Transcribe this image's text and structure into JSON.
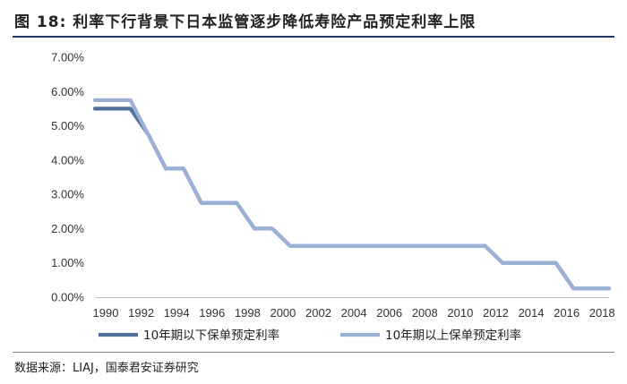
{
  "figure": {
    "title": "图 18: 利率下行背景下日本监管逐步降低寿险产品预定利率上限",
    "source": "数据来源：LIAJ，国泰君安证券研究"
  },
  "colors": {
    "series_1": "#4f6f9c",
    "series_2": "#9bb0d4",
    "axis": "#bfbfbf",
    "rule": "#1f3a68"
  },
  "chart_data": {
    "type": "line",
    "title": "",
    "xlabel": "",
    "ylabel": "",
    "xlim": [
      1990,
      2019
    ],
    "ylim": [
      0,
      7
    ],
    "y_ticks": [
      "0.00%",
      "1.00%",
      "2.00%",
      "3.00%",
      "4.00%",
      "5.00%",
      "6.00%",
      "7.00%"
    ],
    "x_ticks": [
      "1990",
      "1992",
      "1994",
      "1996",
      "1998",
      "2000",
      "2002",
      "2004",
      "2006",
      "2008",
      "2010",
      "2012",
      "2014",
      "2016",
      "2018"
    ],
    "grid": false,
    "legend_position": "bottom",
    "series": [
      {
        "name": "10年期以下保单预定利率",
        "color": "#4f6f9c",
        "points": [
          [
            1990,
            5.5
          ],
          [
            1992,
            5.5
          ],
          [
            1993,
            4.75
          ],
          [
            1994,
            3.75
          ],
          [
            1995,
            3.75
          ],
          [
            1996,
            2.75
          ],
          [
            1998,
            2.75
          ],
          [
            1999,
            2.0
          ],
          [
            2000,
            2.0
          ],
          [
            2001,
            1.5
          ],
          [
            2012,
            1.5
          ],
          [
            2013,
            1.0
          ],
          [
            2016,
            1.0
          ],
          [
            2017,
            0.25
          ],
          [
            2019,
            0.25
          ]
        ]
      },
      {
        "name": "10年期以上保单预定利率",
        "color": "#9bb0d4",
        "points": [
          [
            1990,
            5.75
          ],
          [
            1992,
            5.75
          ],
          [
            1993,
            4.75
          ],
          [
            1994,
            3.75
          ],
          [
            1995,
            3.75
          ],
          [
            1996,
            2.75
          ],
          [
            1998,
            2.75
          ],
          [
            1999,
            2.0
          ],
          [
            2000,
            2.0
          ],
          [
            2001,
            1.5
          ],
          [
            2012,
            1.5
          ],
          [
            2013,
            1.0
          ],
          [
            2016,
            1.0
          ],
          [
            2017,
            0.25
          ],
          [
            2019,
            0.25
          ]
        ]
      }
    ]
  }
}
